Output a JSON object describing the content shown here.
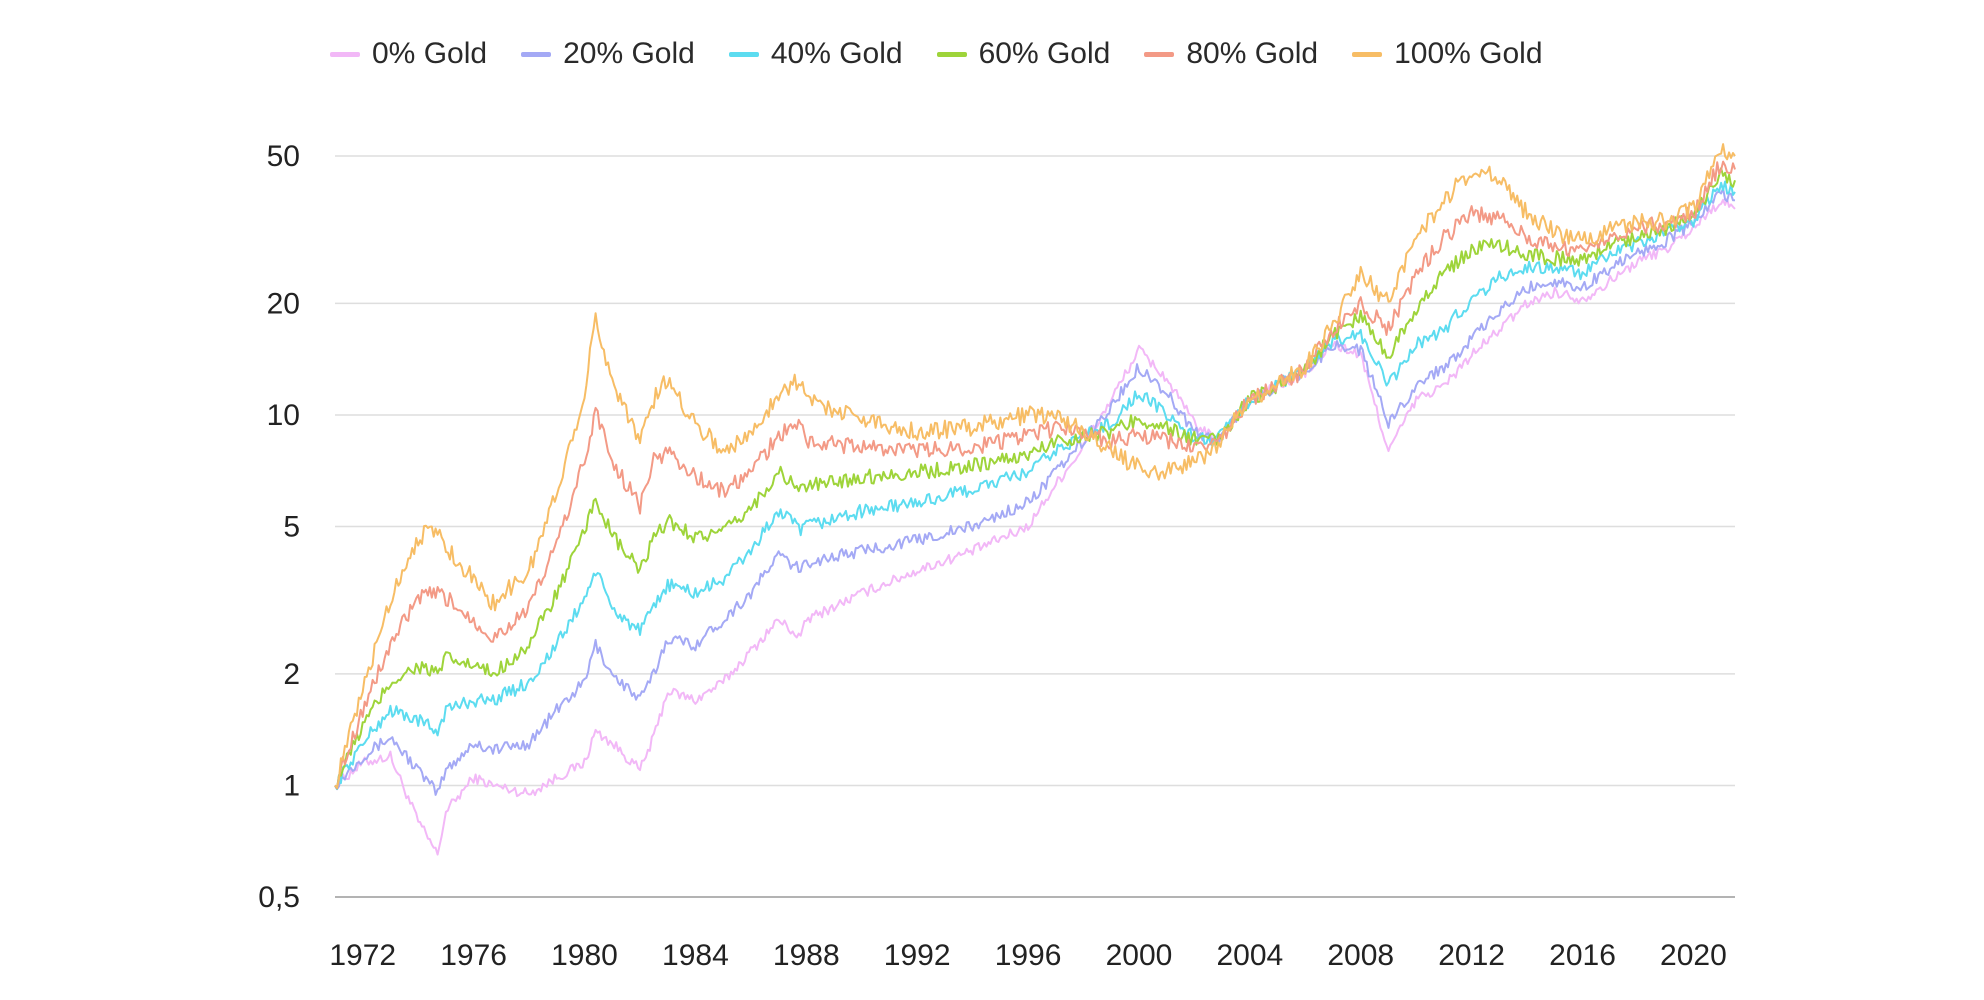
{
  "chart_data": {
    "type": "line",
    "title": "",
    "xlabel": "",
    "ylabel": "",
    "y_scale": "log",
    "ylim": [
      0.5,
      55
    ],
    "xlim": [
      1971,
      2021.5
    ],
    "grid": "horizontal",
    "legend_position": "top-left",
    "y_ticks": [
      {
        "value": 0.5,
        "label": "0,5"
      },
      {
        "value": 1,
        "label": "1"
      },
      {
        "value": 2,
        "label": "2"
      },
      {
        "value": 5,
        "label": "5"
      },
      {
        "value": 10,
        "label": "10"
      },
      {
        "value": 20,
        "label": "20"
      },
      {
        "value": 50,
        "label": "50"
      }
    ],
    "x_ticks": [
      {
        "value": 1972,
        "label": "1972"
      },
      {
        "value": 1976,
        "label": "1976"
      },
      {
        "value": 1980,
        "label": "1980"
      },
      {
        "value": 1984,
        "label": "1984"
      },
      {
        "value": 1988,
        "label": "1988"
      },
      {
        "value": 1992,
        "label": "1992"
      },
      {
        "value": 1996,
        "label": "1996"
      },
      {
        "value": 2000,
        "label": "2000"
      },
      {
        "value": 2004,
        "label": "2004"
      },
      {
        "value": 2008,
        "label": "2008"
      },
      {
        "value": 2012,
        "label": "2012"
      },
      {
        "value": 2016,
        "label": "2016"
      },
      {
        "value": 2020,
        "label": "2020"
      }
    ],
    "x": [
      1971,
      1972,
      1973,
      1974,
      1974.7,
      1975,
      1976,
      1976.7,
      1978,
      1979,
      1980,
      1980.4,
      1981,
      1982,
      1982.5,
      1983,
      1984,
      1985,
      1986,
      1987,
      1987.8,
      1988,
      1990,
      1992,
      1994,
      1996,
      1997,
      1998,
      1999,
      2000,
      2001,
      2002,
      2002.8,
      2004,
      2006,
      2007,
      2008,
      2009,
      2010,
      2011,
      2012,
      2013,
      2014,
      2015,
      2016,
      2017,
      2018,
      2019,
      2020,
      2021,
      2021.5
    ],
    "series": [
      {
        "name": "0% Gold",
        "color": "#f2b8f7",
        "values": [
          1,
          1.15,
          1.2,
          0.8,
          0.65,
          0.85,
          1.05,
          1.0,
          0.95,
          1.05,
          1.15,
          1.4,
          1.3,
          1.1,
          1.35,
          1.8,
          1.7,
          1.9,
          2.3,
          2.8,
          2.5,
          2.8,
          3.3,
          3.8,
          4.3,
          5.0,
          6.5,
          8.2,
          11.0,
          15.0,
          12.5,
          9.5,
          8.5,
          11.0,
          13.0,
          15.5,
          14.5,
          8.0,
          11.0,
          12.0,
          14.5,
          17.0,
          20.0,
          21.5,
          20.5,
          23.0,
          26.0,
          28.0,
          32.0,
          38.0,
          36.0
        ]
      },
      {
        "name": "20% Gold",
        "color": "#a4a9f5",
        "values": [
          1,
          1.2,
          1.35,
          1.1,
          0.95,
          1.1,
          1.3,
          1.25,
          1.3,
          1.6,
          1.9,
          2.4,
          2.0,
          1.7,
          2.0,
          2.5,
          2.4,
          2.8,
          3.3,
          4.2,
          3.8,
          4.0,
          4.3,
          4.6,
          5.0,
          5.8,
          7.0,
          8.5,
          10.5,
          13.5,
          11.5,
          9.0,
          8.5,
          11.0,
          13.0,
          15.5,
          15.0,
          9.5,
          12.0,
          13.5,
          16.0,
          19.0,
          22.0,
          23.0,
          22.0,
          25.0,
          27.5,
          29.5,
          33.0,
          40.0,
          38.0
        ]
      },
      {
        "name": "40% Gold",
        "color": "#5cdcf0",
        "values": [
          1,
          1.3,
          1.6,
          1.5,
          1.4,
          1.6,
          1.7,
          1.7,
          1.9,
          2.4,
          3.2,
          3.8,
          3.0,
          2.6,
          3.0,
          3.5,
          3.3,
          3.6,
          4.3,
          5.5,
          4.9,
          5.0,
          5.5,
          5.8,
          6.3,
          7.0,
          8.0,
          8.8,
          9.5,
          11.5,
          10.0,
          8.7,
          8.5,
          11.0,
          13.2,
          16.0,
          16.5,
          12.0,
          15.5,
          17.0,
          20.5,
          23.5,
          25.0,
          25.0,
          24.0,
          27.0,
          29.0,
          31.0,
          33.5,
          42.0,
          40.0
        ]
      },
      {
        "name": "60% Gold",
        "color": "#9ed43a",
        "values": [
          1,
          1.45,
          1.9,
          2.1,
          2.0,
          2.2,
          2.1,
          2.0,
          2.4,
          3.3,
          4.8,
          6.0,
          4.7,
          3.8,
          4.6,
          5.2,
          4.7,
          4.8,
          5.6,
          7.0,
          6.3,
          6.4,
          6.8,
          7.0,
          7.3,
          7.8,
          8.5,
          8.8,
          9.0,
          9.8,
          9.2,
          8.6,
          8.5,
          11.0,
          13.2,
          16.5,
          18.5,
          14.5,
          19.5,
          24.0,
          28.0,
          29.0,
          27.0,
          26.5,
          26.0,
          29.0,
          30.5,
          32.0,
          34.0,
          45.0,
          43.0
        ]
      },
      {
        "name": "80% Gold",
        "color": "#f39a86",
        "values": [
          1,
          1.6,
          2.4,
          3.2,
          3.3,
          3.2,
          2.8,
          2.5,
          3.0,
          4.5,
          7.5,
          10.3,
          7.5,
          5.7,
          7.5,
          8.0,
          6.8,
          6.2,
          7.0,
          8.8,
          9.5,
          8.5,
          8.2,
          8.0,
          8.2,
          8.8,
          9.2,
          9.0,
          8.5,
          8.8,
          8.5,
          8.2,
          8.3,
          11.0,
          13.2,
          17.0,
          20.0,
          17.0,
          24.0,
          30.0,
          35.0,
          34.0,
          30.0,
          28.5,
          28.0,
          30.5,
          32.0,
          33.0,
          35.0,
          48.0,
          46.0
        ]
      },
      {
        "name": "100% Gold",
        "color": "#f7bd65",
        "values": [
          1,
          1.8,
          3.2,
          4.7,
          4.9,
          4.4,
          3.6,
          3.1,
          3.8,
          6.2,
          11.5,
          18.0,
          12.5,
          8.5,
          11.0,
          12.5,
          9.5,
          8.0,
          8.8,
          11.5,
          12.5,
          11.0,
          9.8,
          9.0,
          9.3,
          10.0,
          10.0,
          9.0,
          8.0,
          7.2,
          7.0,
          7.5,
          8.2,
          11.0,
          13.5,
          17.5,
          24.0,
          20.0,
          30.0,
          38.0,
          46.0,
          44.0,
          35.0,
          31.0,
          29.5,
          31.5,
          33.0,
          33.5,
          36.0,
          52.0,
          50.0
        ]
      }
    ]
  }
}
